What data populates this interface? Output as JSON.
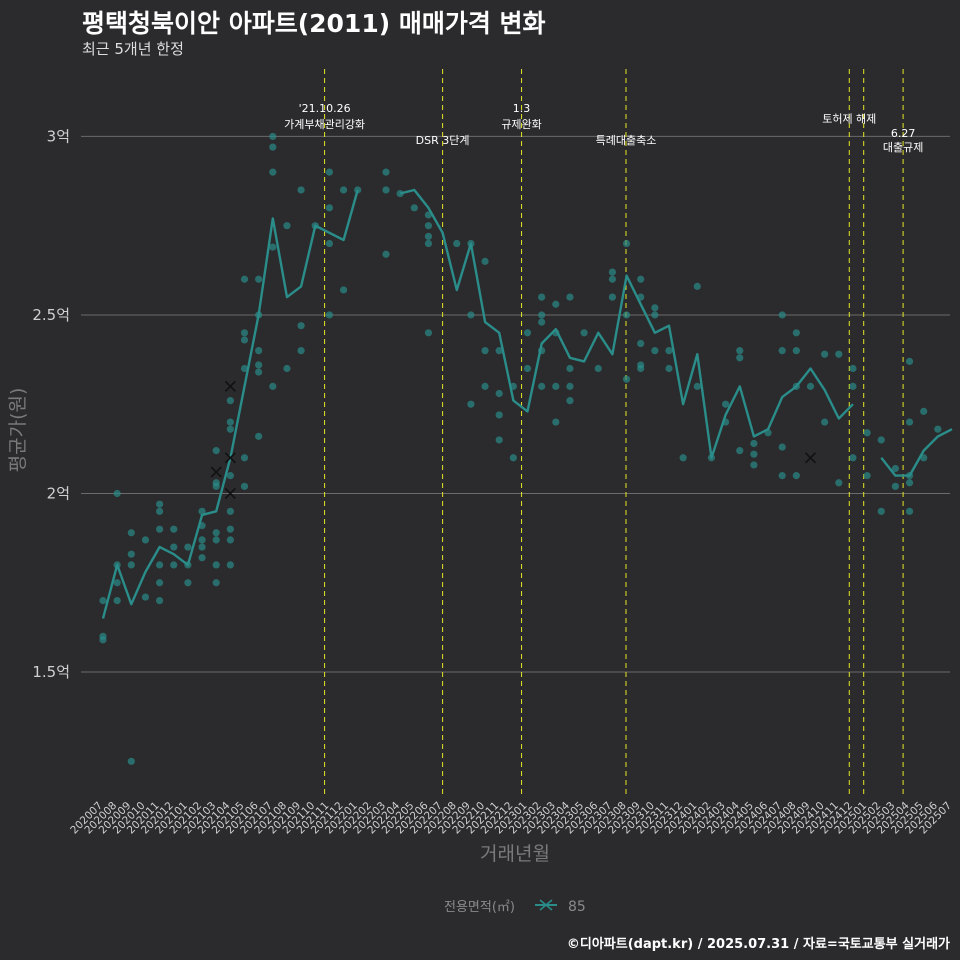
{
  "title": "평택청북이안 아파트(2011) 매매가격 변화",
  "subtitle": "최근 5개년 한정",
  "credit": "©디아파트(dapt.kr) / 2025.07.31 / 자료=국토교통부 실거래가",
  "colors": {
    "background": "#2b2b2d",
    "series": "#2a8d8a",
    "points": "#2a8d8a",
    "vline": "#e5e524",
    "grid": "#6b6b6b"
  },
  "chart_data": {
    "type": "line",
    "title": "평택청북이안 아파트(2011) 매매가격 변화",
    "subtitle": "최근 5개년 한정",
    "xlabel": "거래년월",
    "ylabel": "평균가(원)",
    "ylim": [
      1.15,
      3.2
    ],
    "y_ticks": [
      1.5,
      2,
      2.5,
      3
    ],
    "y_tick_labels": [
      "1.5억",
      "2억",
      "2.5억",
      "3억"
    ],
    "grid": "horizontal",
    "legend_title": "전용면적(㎡)",
    "legend_position": "bottom",
    "categories": [
      "202007",
      "202008",
      "202009",
      "202010",
      "202011",
      "202012",
      "202101",
      "202102",
      "202103",
      "202104",
      "202105",
      "202106",
      "202107",
      "202108",
      "202109",
      "202110",
      "202111",
      "202112",
      "202201",
      "202202",
      "202203",
      "202204",
      "202205",
      "202206",
      "202207",
      "202208",
      "202209",
      "202210",
      "202211",
      "202212",
      "202301",
      "202302",
      "202303",
      "202304",
      "202305",
      "202306",
      "202307",
      "202308",
      "202309",
      "202310",
      "202311",
      "202312",
      "202401",
      "202402",
      "202403",
      "202404",
      "202405",
      "202406",
      "202407",
      "202408",
      "202409",
      "202410",
      "202411",
      "202412",
      "202501",
      "202502",
      "202503",
      "202504",
      "202505",
      "202506",
      "202507"
    ],
    "series": [
      {
        "name": "85",
        "values": [
          1.65,
          1.8,
          1.69,
          1.78,
          1.85,
          1.83,
          1.8,
          1.94,
          1.95,
          2.1,
          2.3,
          2.5,
          2.77,
          2.55,
          2.58,
          2.75,
          2.73,
          2.71,
          2.85,
          null,
          null,
          2.84,
          2.85,
          2.8,
          2.73,
          2.57,
          2.7,
          2.48,
          2.45,
          2.26,
          2.23,
          2.42,
          2.46,
          2.38,
          2.37,
          2.45,
          2.39,
          2.61,
          2.53,
          2.45,
          2.47,
          2.25,
          2.39,
          2.1,
          2.22,
          2.3,
          2.16,
          2.18,
          2.27,
          2.3,
          2.35,
          2.29,
          2.21,
          2.25,
          null,
          2.1,
          2.05,
          2.05,
          2.12,
          2.16,
          2.18
        ]
      }
    ],
    "scatter": [
      [
        "202007",
        1.7
      ],
      [
        "202007",
        1.6
      ],
      [
        "202007",
        1.59
      ],
      [
        "202008",
        2.0
      ],
      [
        "202008",
        1.8
      ],
      [
        "202008",
        1.75
      ],
      [
        "202008",
        1.7
      ],
      [
        "202009",
        1.89
      ],
      [
        "202009",
        1.83
      ],
      [
        "202009",
        1.8
      ],
      [
        "202009",
        1.25
      ],
      [
        "202010",
        1.71
      ],
      [
        "202010",
        1.87
      ],
      [
        "202011",
        1.97
      ],
      [
        "202011",
        1.95
      ],
      [
        "202011",
        1.9
      ],
      [
        "202011",
        1.8
      ],
      [
        "202011",
        1.75
      ],
      [
        "202011",
        1.7
      ],
      [
        "202012",
        1.9
      ],
      [
        "202012",
        1.85
      ],
      [
        "202012",
        1.8
      ],
      [
        "202101",
        1.85
      ],
      [
        "202101",
        1.8
      ],
      [
        "202101",
        1.75
      ],
      [
        "202102",
        1.95
      ],
      [
        "202102",
        1.91
      ],
      [
        "202102",
        1.87
      ],
      [
        "202102",
        1.85
      ],
      [
        "202102",
        1.82
      ],
      [
        "202103",
        2.12
      ],
      [
        "202103",
        2.03
      ],
      [
        "202103",
        2.02
      ],
      [
        "202103",
        1.89
      ],
      [
        "202103",
        1.87
      ],
      [
        "202103",
        1.8
      ],
      [
        "202103",
        1.75
      ],
      [
        "202104",
        2.26
      ],
      [
        "202104",
        2.2
      ],
      [
        "202104",
        2.18
      ],
      [
        "202104",
        2.05
      ],
      [
        "202104",
        1.95
      ],
      [
        "202104",
        1.9
      ],
      [
        "202104",
        1.87
      ],
      [
        "202104",
        1.8
      ],
      [
        "202105",
        2.6
      ],
      [
        "202105",
        2.45
      ],
      [
        "202105",
        2.43
      ],
      [
        "202105",
        2.35
      ],
      [
        "202105",
        2.1
      ],
      [
        "202105",
        2.02
      ],
      [
        "202106",
        2.6
      ],
      [
        "202106",
        2.5
      ],
      [
        "202106",
        2.4
      ],
      [
        "202106",
        2.36
      ],
      [
        "202106",
        2.34
      ],
      [
        "202106",
        2.16
      ],
      [
        "202107",
        3.0
      ],
      [
        "202107",
        2.97
      ],
      [
        "202107",
        2.9
      ],
      [
        "202107",
        2.69
      ],
      [
        "202107",
        2.3
      ],
      [
        "202108",
        2.75
      ],
      [
        "202108",
        2.35
      ],
      [
        "202109",
        2.85
      ],
      [
        "202109",
        2.47
      ],
      [
        "202109",
        2.4
      ],
      [
        "202110",
        2.75
      ],
      [
        "202111",
        2.9
      ],
      [
        "202111",
        2.8
      ],
      [
        "202111",
        2.7
      ],
      [
        "202111",
        2.5
      ],
      [
        "202112",
        2.85
      ],
      [
        "202112",
        2.57
      ],
      [
        "202201",
        2.85
      ],
      [
        "202203",
        2.9
      ],
      [
        "202203",
        2.85
      ],
      [
        "202203",
        2.67
      ],
      [
        "202204",
        2.84
      ],
      [
        "202205",
        2.8
      ],
      [
        "202206",
        2.78
      ],
      [
        "202206",
        2.75
      ],
      [
        "202206",
        2.72
      ],
      [
        "202206",
        2.7
      ],
      [
        "202206",
        2.45
      ],
      [
        "202208",
        2.7
      ],
      [
        "202209",
        2.7
      ],
      [
        "202209",
        2.5
      ],
      [
        "202209",
        2.25
      ],
      [
        "202210",
        2.65
      ],
      [
        "202210",
        2.4
      ],
      [
        "202210",
        2.3
      ],
      [
        "202211",
        2.4
      ],
      [
        "202211",
        2.28
      ],
      [
        "202211",
        2.22
      ],
      [
        "202211",
        2.15
      ],
      [
        "202212",
        2.3
      ],
      [
        "202212",
        2.1
      ],
      [
        "202301",
        2.45
      ],
      [
        "202301",
        2.35
      ],
      [
        "202302",
        2.55
      ],
      [
        "202302",
        2.5
      ],
      [
        "202302",
        2.48
      ],
      [
        "202302",
        2.4
      ],
      [
        "202302",
        2.3
      ],
      [
        "202303",
        2.53
      ],
      [
        "202303",
        2.45
      ],
      [
        "202303",
        2.3
      ],
      [
        "202303",
        2.2
      ],
      [
        "202304",
        2.55
      ],
      [
        "202304",
        2.35
      ],
      [
        "202304",
        2.3
      ],
      [
        "202304",
        2.26
      ],
      [
        "202305",
        2.45
      ],
      [
        "202306",
        2.35
      ],
      [
        "202307",
        2.62
      ],
      [
        "202307",
        2.6
      ],
      [
        "202307",
        2.55
      ],
      [
        "202308",
        2.7
      ],
      [
        "202308",
        2.5
      ],
      [
        "202308",
        2.32
      ],
      [
        "202309",
        2.6
      ],
      [
        "202309",
        2.55
      ],
      [
        "202309",
        2.42
      ],
      [
        "202309",
        2.36
      ],
      [
        "202309",
        2.35
      ],
      [
        "202310",
        2.52
      ],
      [
        "202310",
        2.5
      ],
      [
        "202310",
        2.4
      ],
      [
        "202311",
        2.4
      ],
      [
        "202311",
        2.35
      ],
      [
        "202312",
        2.1
      ],
      [
        "202401",
        2.58
      ],
      [
        "202401",
        2.3
      ],
      [
        "202402",
        2.1
      ],
      [
        "202403",
        2.25
      ],
      [
        "202403",
        2.2
      ],
      [
        "202404",
        2.4
      ],
      [
        "202404",
        2.38
      ],
      [
        "202404",
        2.12
      ],
      [
        "202405",
        2.14
      ],
      [
        "202405",
        2.11
      ],
      [
        "202405",
        2.08
      ],
      [
        "202406",
        2.17
      ],
      [
        "202407",
        2.5
      ],
      [
        "202407",
        2.4
      ],
      [
        "202407",
        2.13
      ],
      [
        "202407",
        2.05
      ],
      [
        "202408",
        2.45
      ],
      [
        "202408",
        2.4
      ],
      [
        "202408",
        2.3
      ],
      [
        "202408",
        2.05
      ],
      [
        "202409",
        2.3
      ],
      [
        "202410",
        2.39
      ],
      [
        "202410",
        2.2
      ],
      [
        "202411",
        2.39
      ],
      [
        "202411",
        2.03
      ],
      [
        "202412",
        2.35
      ],
      [
        "202412",
        2.3
      ],
      [
        "202412",
        2.1
      ],
      [
        "202501",
        2.17
      ],
      [
        "202501",
        2.05
      ],
      [
        "202502",
        2.15
      ],
      [
        "202502",
        1.95
      ],
      [
        "202503",
        2.07
      ],
      [
        "202503",
        2.02
      ],
      [
        "202504",
        2.37
      ],
      [
        "202504",
        2.2
      ],
      [
        "202504",
        2.05
      ],
      [
        "202504",
        2.03
      ],
      [
        "202504",
        1.95
      ],
      [
        "202505",
        2.23
      ],
      [
        "202505",
        2.1
      ],
      [
        "202506",
        2.18
      ]
    ],
    "cancelled_deals": [
      [
        "202103",
        2.06
      ],
      [
        "202104",
        2.3
      ],
      [
        "202104",
        2.1
      ],
      [
        "202104",
        2.0
      ],
      [
        "202409",
        2.1
      ]
    ],
    "events": [
      {
        "x": 2021.805,
        "label": [
          "'21.10.26",
          "가계부채관리강화"
        ],
        "label_y": [
          3.08,
          3.035
        ]
      },
      {
        "x": 2022.5,
        "label": [
          "DSR 3단계"
        ],
        "label_y": [
          2.99
        ]
      },
      {
        "x": 2022.965,
        "label": [
          "1.3",
          "규제완화"
        ],
        "label_y": [
          3.08,
          3.035
        ]
      },
      {
        "x": 2023.58,
        "label": [
          "특례대출축소"
        ],
        "label_y": [
          2.99
        ]
      },
      {
        "x": 2024.895,
        "label": [
          "토허제 해제"
        ],
        "label_y": [
          3.05
        ]
      },
      {
        "x": 2024.98,
        "label": [],
        "label_y": []
      },
      {
        "x": 2025.212,
        "label": [
          "6.27",
          "대출규제"
        ],
        "label_y": [
          3.01,
          2.97
        ]
      }
    ]
  }
}
